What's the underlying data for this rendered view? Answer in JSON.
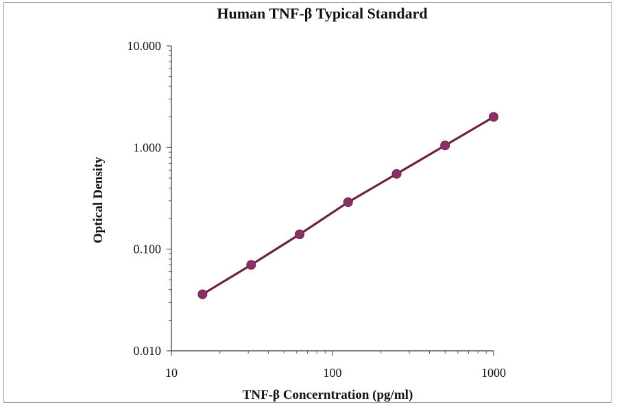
{
  "chart_data": {
    "type": "line",
    "title": "Human TNF-β Typical Standard",
    "xlabel": "TNF-β Concerntration (pg/ml)",
    "ylabel": "Optical Density",
    "x_scale": "log",
    "y_scale": "log",
    "xlim": [
      10,
      1000
    ],
    "ylim": [
      0.01,
      10
    ],
    "x_ticks": [
      "10",
      "100",
      "1000"
    ],
    "y_ticks": [
      "0.010",
      "0.100",
      "1.000",
      "10.000"
    ],
    "grid": false,
    "legend": "none",
    "series": [
      {
        "color": "#6e2242",
        "marker_color": "#8b2f66",
        "x": [
          15.6,
          31.25,
          62.5,
          125,
          250,
          500,
          1000
        ],
        "y": [
          0.036,
          0.07,
          0.14,
          0.29,
          0.55,
          1.05,
          2.0
        ]
      }
    ]
  }
}
